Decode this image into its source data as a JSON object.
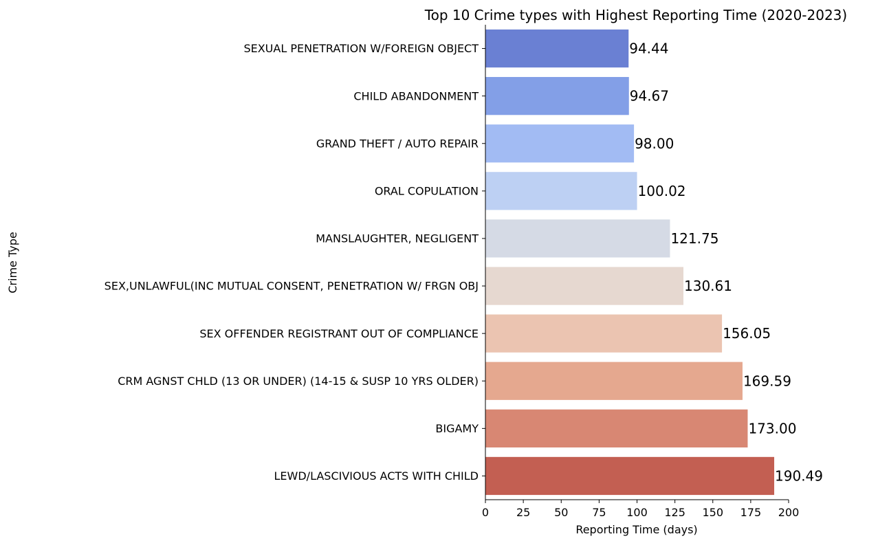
{
  "chart_data": {
    "type": "bar",
    "orientation": "horizontal",
    "title": "Top 10 Crime types with Highest Reporting Time (2020-2023)",
    "xlabel": "Reporting Time (days)",
    "ylabel": "Crime Type",
    "xlim": [
      0,
      200
    ],
    "xticks": [
      0,
      25,
      50,
      75,
      100,
      125,
      150,
      175,
      200
    ],
    "grid": false,
    "legend": "none",
    "categories": [
      "SEXUAL PENETRATION W/FOREIGN OBJECT",
      "CHILD ABANDONMENT",
      "GRAND THEFT / AUTO REPAIR",
      "ORAL COPULATION",
      "MANSLAUGHTER, NEGLIGENT",
      "SEX,UNLAWFUL(INC MUTUAL CONSENT, PENETRATION W/ FRGN OBJ",
      "SEX OFFENDER REGISTRANT OUT OF COMPLIANCE",
      "CRM AGNST CHLD (13 OR UNDER) (14-15 & SUSP 10 YRS OLDER)",
      "BIGAMY",
      "LEWD/LASCIVIOUS ACTS WITH CHILD"
    ],
    "values": [
      94.44,
      94.67,
      98.0,
      100.02,
      121.75,
      130.61,
      156.05,
      169.59,
      173.0,
      190.49
    ],
    "data_labels": [
      "94.44",
      "94.67",
      "98.00",
      "100.02",
      "121.75",
      "130.61",
      "156.05",
      "169.59",
      "173.00",
      "190.49"
    ],
    "colors": [
      "#6a80d3",
      "#839fe7",
      "#a2bbf3",
      "#bdd0f3",
      "#d5dae5",
      "#e6d8d0",
      "#ebc4b1",
      "#e5a88f",
      "#d88773",
      "#c35f52"
    ]
  }
}
